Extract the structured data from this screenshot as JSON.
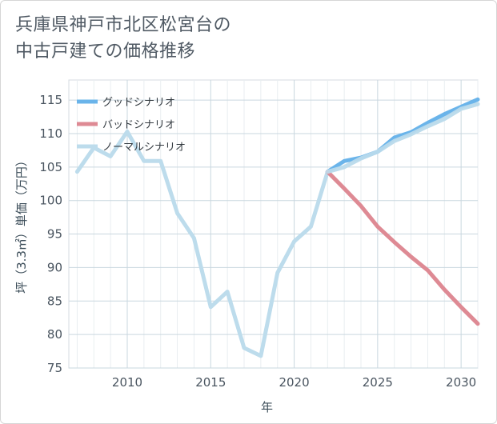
{
  "title_line1": "兵庫県神戸市北区松宮台の",
  "title_line2": "中古戸建ての価格推移",
  "chart_data": {
    "type": "line",
    "title": "兵庫県神戸市北区松宮台の中古戸建ての価格推移",
    "xlabel": "年",
    "ylabel": "坪（3.3㎡）単価（万円）",
    "xlim": [
      2006.5,
      2031
    ],
    "ylim": [
      75,
      118
    ],
    "xticks": [
      2010,
      2015,
      2020,
      2025,
      2030
    ],
    "yticks": [
      75,
      80,
      85,
      90,
      95,
      100,
      105,
      110,
      115
    ],
    "grid": true,
    "legend_position": "top-left",
    "series": [
      {
        "name": "グッドシナリオ",
        "color": "#6ab4ea",
        "x": [
          2022,
          2023,
          2024,
          2025,
          2026,
          2027,
          2028,
          2029,
          2030,
          2031
        ],
        "values": [
          104.3,
          105.9,
          106.4,
          107.3,
          109.4,
          110.2,
          111.6,
          112.9,
          114.0,
          115.1
        ]
      },
      {
        "name": "バッドシナリオ",
        "color": "#de8a94",
        "x": [
          2022,
          2023,
          2024,
          2025,
          2026,
          2027,
          2028,
          2029,
          2030,
          2031
        ],
        "values": [
          104.3,
          101.8,
          99.2,
          96.1,
          93.8,
          91.6,
          89.6,
          86.7,
          84.1,
          81.6
        ]
      },
      {
        "name": "ノーマルシナリオ",
        "color": "#bddcec",
        "x": [
          2007,
          2008,
          2009,
          2010,
          2011,
          2012,
          2013,
          2014,
          2015,
          2016,
          2017,
          2018,
          2019,
          2020,
          2021,
          2022,
          2023,
          2024,
          2025,
          2026,
          2027,
          2028,
          2029,
          2030,
          2031
        ],
        "values": [
          104.3,
          107.9,
          106.6,
          110.3,
          105.9,
          105.9,
          98.1,
          94.4,
          84.1,
          86.4,
          78.0,
          76.8,
          89.2,
          93.9,
          96.1,
          104.3,
          105.0,
          106.3,
          107.3,
          108.9,
          109.9,
          111.1,
          112.2,
          113.7,
          114.4
        ]
      }
    ]
  }
}
